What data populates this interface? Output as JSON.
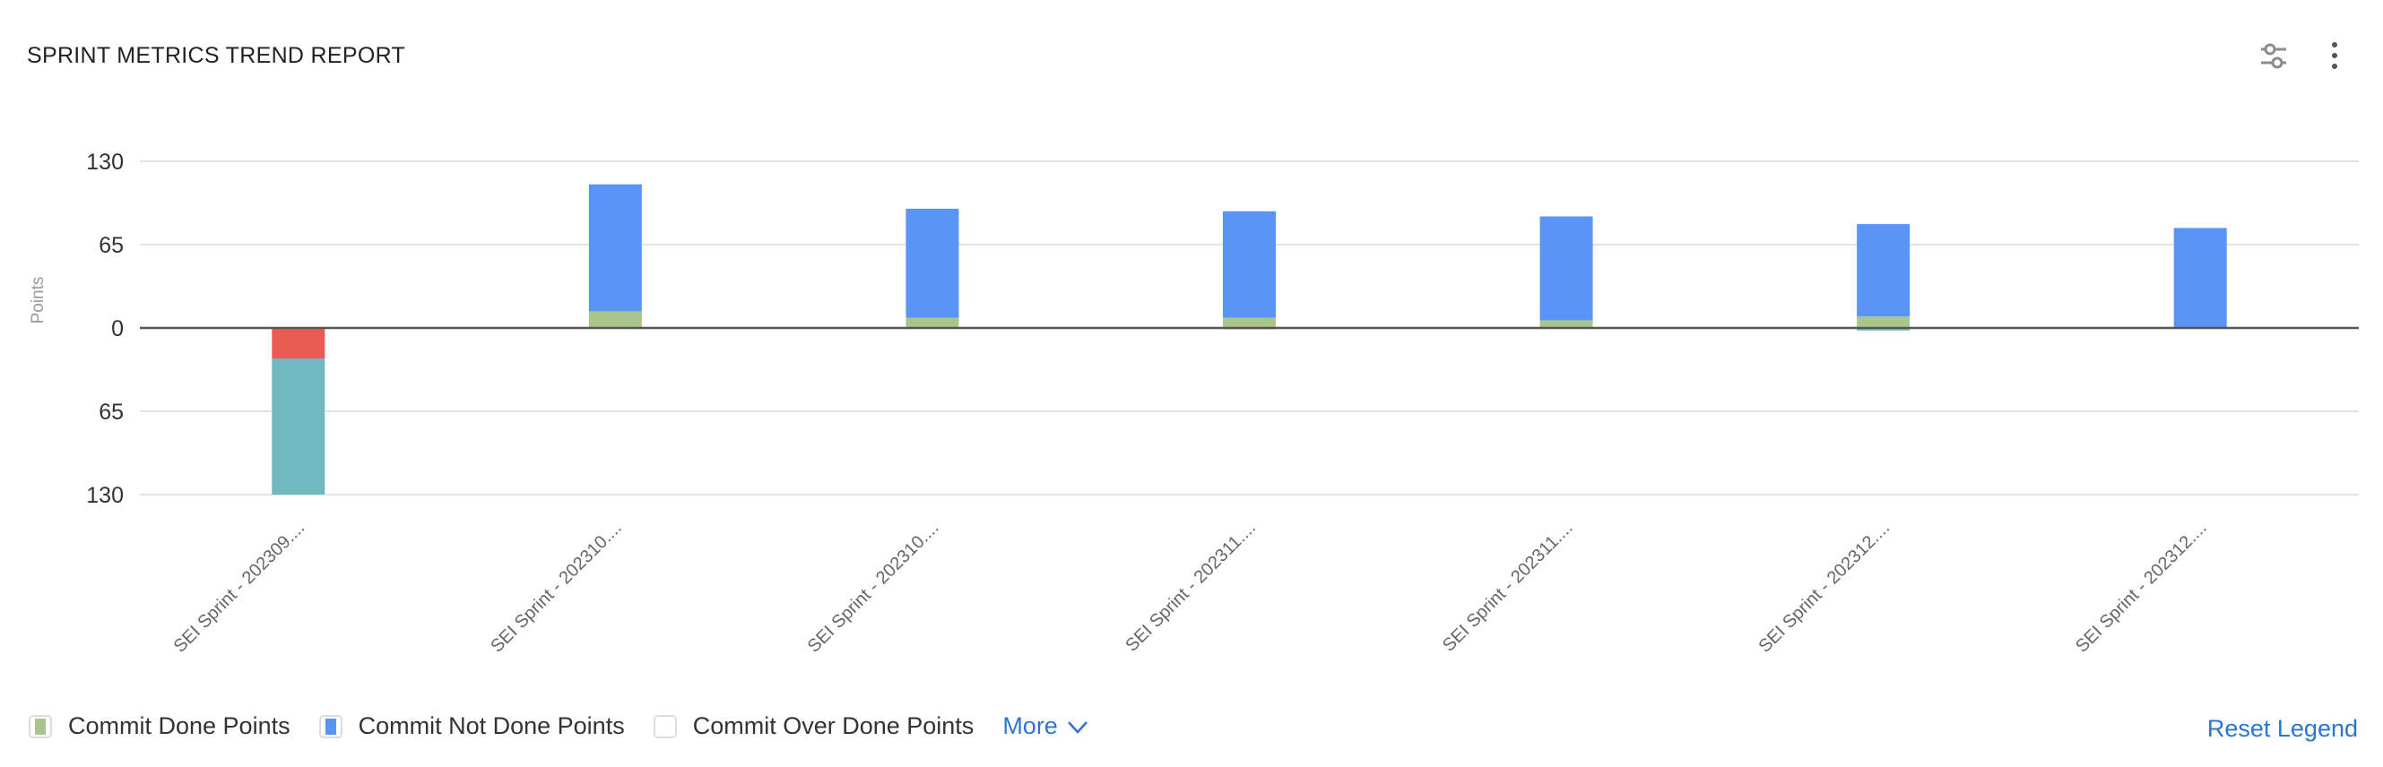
{
  "header": {
    "title": "SPRINT METRICS TREND REPORT",
    "settings_icon": "sliders-icon",
    "menu_icon": "more-vertical-icon"
  },
  "chart_data": {
    "type": "bar",
    "stacked": true,
    "diverging": true,
    "ylabel": "Points",
    "ylim": [
      -130,
      130
    ],
    "yticks": [
      130,
      65,
      0,
      -65,
      -130
    ],
    "ytick_labels": [
      "130",
      "65",
      "0",
      "65",
      "130"
    ],
    "grid": true,
    "categories": [
      "SEI Sprint - 202309....",
      "SEI Sprint - 202310....",
      "SEI Sprint - 202310....",
      "SEI Sprint - 202311....",
      "SEI Sprint - 202311....",
      "SEI Sprint - 202312....",
      "SEI Sprint - 202312...."
    ],
    "series": [
      {
        "name": "Commit Done Points",
        "color": "#a9c68a",
        "values": [
          0,
          13,
          8,
          8,
          6,
          9,
          0
        ]
      },
      {
        "name": "Commit Not Done Points",
        "color": "#5895f7",
        "values": [
          0,
          99,
          85,
          83,
          81,
          72,
          78
        ]
      },
      {
        "color": "#eb5b56",
        "values": [
          -24,
          0,
          0,
          -1,
          0,
          0,
          0
        ]
      },
      {
        "color": "#70b9c2",
        "values": [
          -106,
          0,
          0,
          0,
          0,
          -2,
          0
        ]
      }
    ]
  },
  "legend": {
    "items": [
      {
        "label": "Commit Done Points",
        "color": "#a9c68a",
        "checked": true
      },
      {
        "label": "Commit Not Done Points",
        "color": "#5895f7",
        "checked": true
      },
      {
        "label": "Commit Over Done Points",
        "color": "#ffffff",
        "checked": false
      }
    ],
    "more_label": "More",
    "reset_label": "Reset Legend"
  }
}
